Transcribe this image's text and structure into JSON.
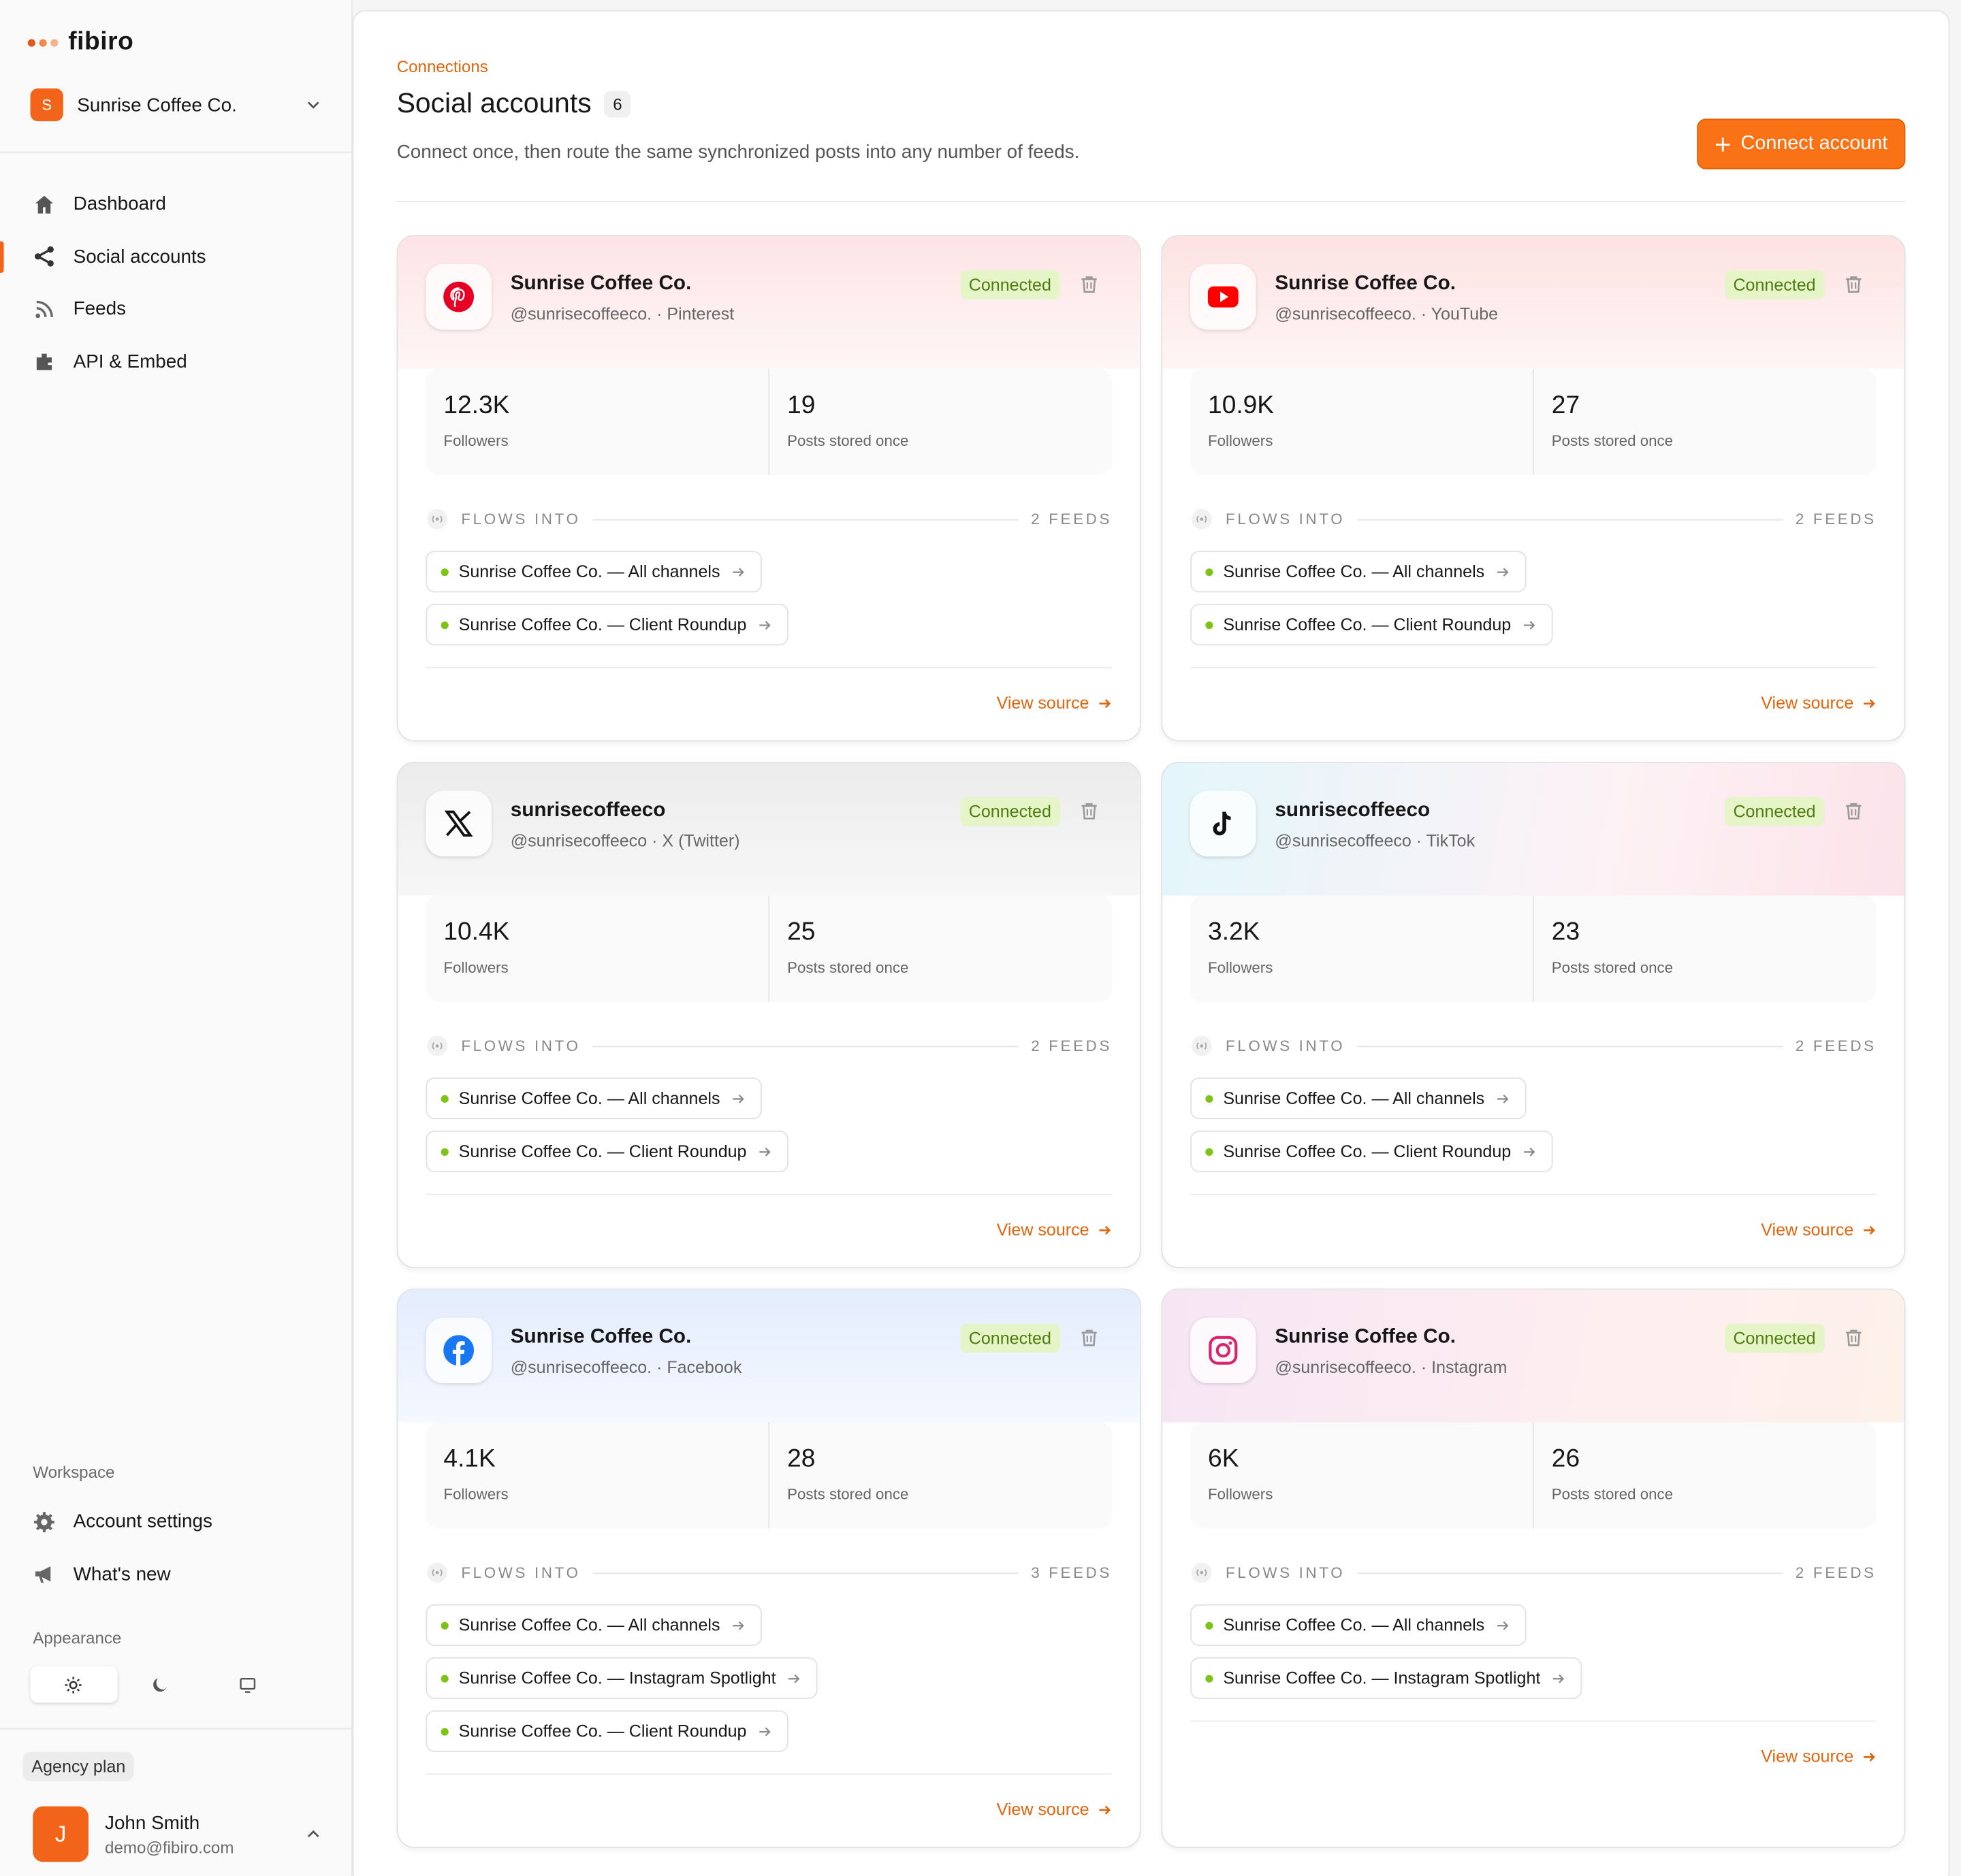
{
  "brand": "fibiro",
  "workspace": {
    "initial": "S",
    "name": "Sunrise Coffee Co."
  },
  "nav": [
    "Dashboard",
    "Social accounts",
    "Feeds",
    "API & Embed"
  ],
  "workspace_section": {
    "title": "Workspace",
    "items": [
      "Account settings",
      "What's new"
    ]
  },
  "appearance": {
    "title": "Appearance"
  },
  "plan": "Agency plan",
  "user": {
    "initial": "J",
    "name": "John Smith",
    "email": "demo@fibiro.com"
  },
  "header": {
    "eyebrow": "Connections",
    "title": "Social accounts",
    "count": 6,
    "description": "Connect once, then route the same synchronized posts into any number of feeds.",
    "button": "Connect account"
  },
  "cards": [
    {
      "name": "Sunrise Coffee Co.",
      "subtitle": "@sunrisecoffeeco. · Pinterest",
      "status": "Connected",
      "followers": "12.3K",
      "followers_label": "Followers",
      "posts": 19,
      "posts_label": "Posts stored once",
      "flows_label": "FLOWS INTO",
      "feeds_count": "2 FEEDS",
      "feeds": [
        "Sunrise Coffee Co. — All channels",
        "Sunrise Coffee Co. — Client Roundup"
      ],
      "link": "View source"
    },
    {
      "name": "Sunrise Coffee Co.",
      "subtitle": "@sunrisecoffeeco. · YouTube",
      "status": "Connected",
      "followers": "10.9K",
      "followers_label": "Followers",
      "posts": 27,
      "posts_label": "Posts stored once",
      "flows_label": "FLOWS INTO",
      "feeds_count": "2 FEEDS",
      "feeds": [
        "Sunrise Coffee Co. — All channels",
        "Sunrise Coffee Co. — Client Roundup"
      ],
      "link": "View source"
    },
    {
      "name": "sunrisecoffeeco",
      "subtitle": "@sunrisecoffeeco · X (Twitter)",
      "status": "Connected",
      "followers": "10.4K",
      "followers_label": "Followers",
      "posts": 25,
      "posts_label": "Posts stored once",
      "flows_label": "FLOWS INTO",
      "feeds_count": "2 FEEDS",
      "feeds": [
        "Sunrise Coffee Co. — All channels",
        "Sunrise Coffee Co. — Client Roundup"
      ],
      "link": "View source"
    },
    {
      "name": "sunrisecoffeeco",
      "subtitle": "@sunrisecoffeeco · TikTok",
      "status": "Connected",
      "followers": "3.2K",
      "followers_label": "Followers",
      "posts": 23,
      "posts_label": "Posts stored once",
      "flows_label": "FLOWS INTO",
      "feeds_count": "2 FEEDS",
      "feeds": [
        "Sunrise Coffee Co. — All channels",
        "Sunrise Coffee Co. — Client Roundup"
      ],
      "link": "View source"
    },
    {
      "name": "Sunrise Coffee Co.",
      "subtitle": "@sunrisecoffeeco. · Facebook",
      "status": "Connected",
      "followers": "4.1K",
      "followers_label": "Followers",
      "posts": 28,
      "posts_label": "Posts stored once",
      "flows_label": "FLOWS INTO",
      "feeds_count": "3 FEEDS",
      "feeds": [
        "Sunrise Coffee Co. — All channels",
        "Sunrise Coffee Co. — Instagram Spotlight",
        "Sunrise Coffee Co. — Client Roundup"
      ],
      "link": "View source"
    },
    {
      "name": "Sunrise Coffee Co.",
      "subtitle": "@sunrisecoffeeco. · Instagram",
      "status": "Connected",
      "followers": "6K",
      "followers_label": "Followers",
      "posts": 26,
      "posts_label": "Posts stored once",
      "flows_label": "FLOWS INTO",
      "feeds_count": "2 FEEDS",
      "feeds": [
        "Sunrise Coffee Co. — All channels",
        "Sunrise Coffee Co. — Instagram Spotlight"
      ],
      "link": "View source"
    }
  ]
}
